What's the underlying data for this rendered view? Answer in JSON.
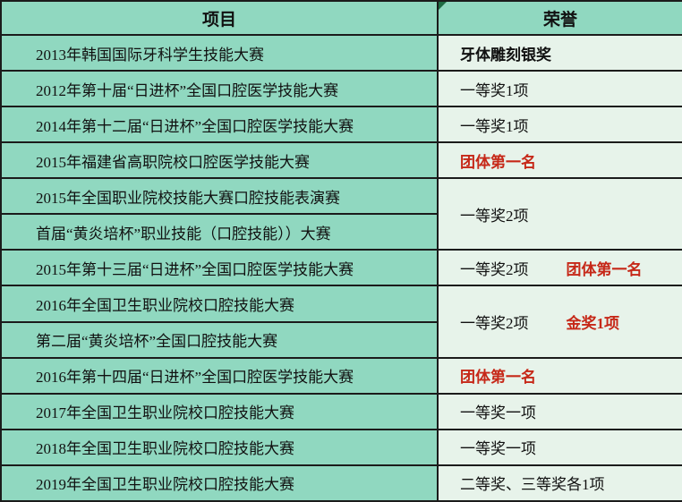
{
  "table": {
    "headers": {
      "project": "项目",
      "honor": "荣誉"
    },
    "rows": [
      {
        "project": "2013年韩国国际牙科学生技能大赛",
        "honor": {
          "rowspan": 1,
          "parts": [
            {
              "text": "牙体雕刻银奖",
              "red": false,
              "bold": true
            }
          ]
        }
      },
      {
        "project": "2012年第十届“日进杯”全国口腔医学技能大赛",
        "honor": {
          "rowspan": 1,
          "parts": [
            {
              "text": "一等奖1项",
              "red": false,
              "bold": false
            }
          ]
        }
      },
      {
        "project": "2014年第十二届“日进杯”全国口腔医学技能大赛",
        "honor": {
          "rowspan": 1,
          "parts": [
            {
              "text": "一等奖1项",
              "red": false,
              "bold": false
            }
          ]
        }
      },
      {
        "project": "2015年福建省高职院校口腔医学技能大赛",
        "honor": {
          "rowspan": 1,
          "parts": [
            {
              "text": "团体第一名",
              "red": true,
              "bold": true
            }
          ]
        }
      },
      {
        "project": "2015年全国职业院校技能大赛口腔技能表演赛",
        "honor": {
          "rowspan": 2,
          "parts": [
            {
              "text": "一等奖2项",
              "red": false,
              "bold": false
            }
          ]
        }
      },
      {
        "project": "首届“黄炎培杯”职业技能（口腔技能））大赛",
        "honor": null
      },
      {
        "project": "2015年第十三届“日进杯”全国口腔医学技能大赛",
        "honor": {
          "rowspan": 1,
          "parts": [
            {
              "text": "一等奖2项",
              "red": false,
              "bold": false
            },
            {
              "text": "团体第一名",
              "red": true,
              "bold": true
            }
          ]
        }
      },
      {
        "project": "2016年全国卫生职业院校口腔技能大赛",
        "honor": {
          "rowspan": 2,
          "parts": [
            {
              "text": "一等奖2项",
              "red": false,
              "bold": false
            },
            {
              "text": "金奖1项",
              "red": true,
              "bold": true
            }
          ]
        }
      },
      {
        "project": "第二届“黄炎培杯”全国口腔技能大赛",
        "honor": null
      },
      {
        "project": "2016年第十四届“日进杯”全国口腔医学技能大赛",
        "honor": {
          "rowspan": 1,
          "parts": [
            {
              "text": "团体第一名",
              "red": true,
              "bold": true
            }
          ]
        }
      },
      {
        "project": "2017年全国卫生职业院校口腔技能大赛",
        "honor": {
          "rowspan": 1,
          "parts": [
            {
              "text": "一等奖一项",
              "red": false,
              "bold": false
            }
          ]
        }
      },
      {
        "project": "2018年全国卫生职业院校口腔技能大赛",
        "honor": {
          "rowspan": 1,
          "parts": [
            {
              "text": "一等奖一项",
              "red": false,
              "bold": false
            }
          ]
        }
      },
      {
        "project": "2019年全国卫生职业院校口腔技能大赛",
        "honor": {
          "rowspan": 1,
          "parts": [
            {
              "text": "二等奖、三等奖各1项",
              "red": false,
              "bold": false
            }
          ]
        }
      }
    ],
    "colors": {
      "header_and_project_bg": "#90d8c0",
      "honor_bg": "#e7f3ea",
      "border": "#1b1b1b",
      "highlight_red": "#c62818",
      "corner_triangle_green": "#1e6b43"
    }
  }
}
